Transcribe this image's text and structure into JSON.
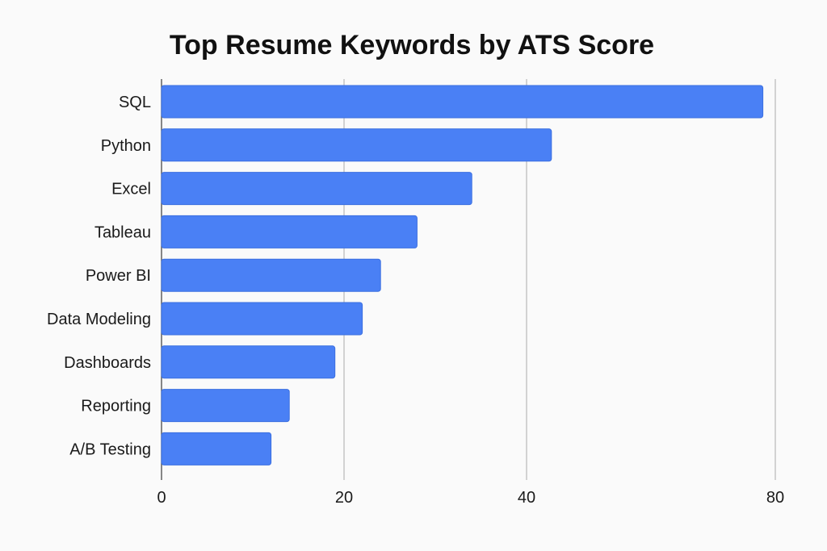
{
  "chart_data": {
    "type": "bar",
    "orientation": "horizontal",
    "title": "Top Resume Keywords by ATS Score",
    "xlabel": "",
    "ylabel": "",
    "categories": [
      "SQL",
      "Python",
      "Excel",
      "Tableau",
      "Power BI",
      "Data Modeling",
      "Dashboards",
      "Reporting",
      "A/B Testing"
    ],
    "values": [
      78,
      44,
      34,
      28,
      24,
      22,
      19,
      14,
      12
    ],
    "xticks": [
      0,
      20,
      40,
      80
    ],
    "grid": "vertical",
    "legend": "none",
    "bar_color": "#4a80f5",
    "bar_edge_color": "#3b6fe0"
  }
}
